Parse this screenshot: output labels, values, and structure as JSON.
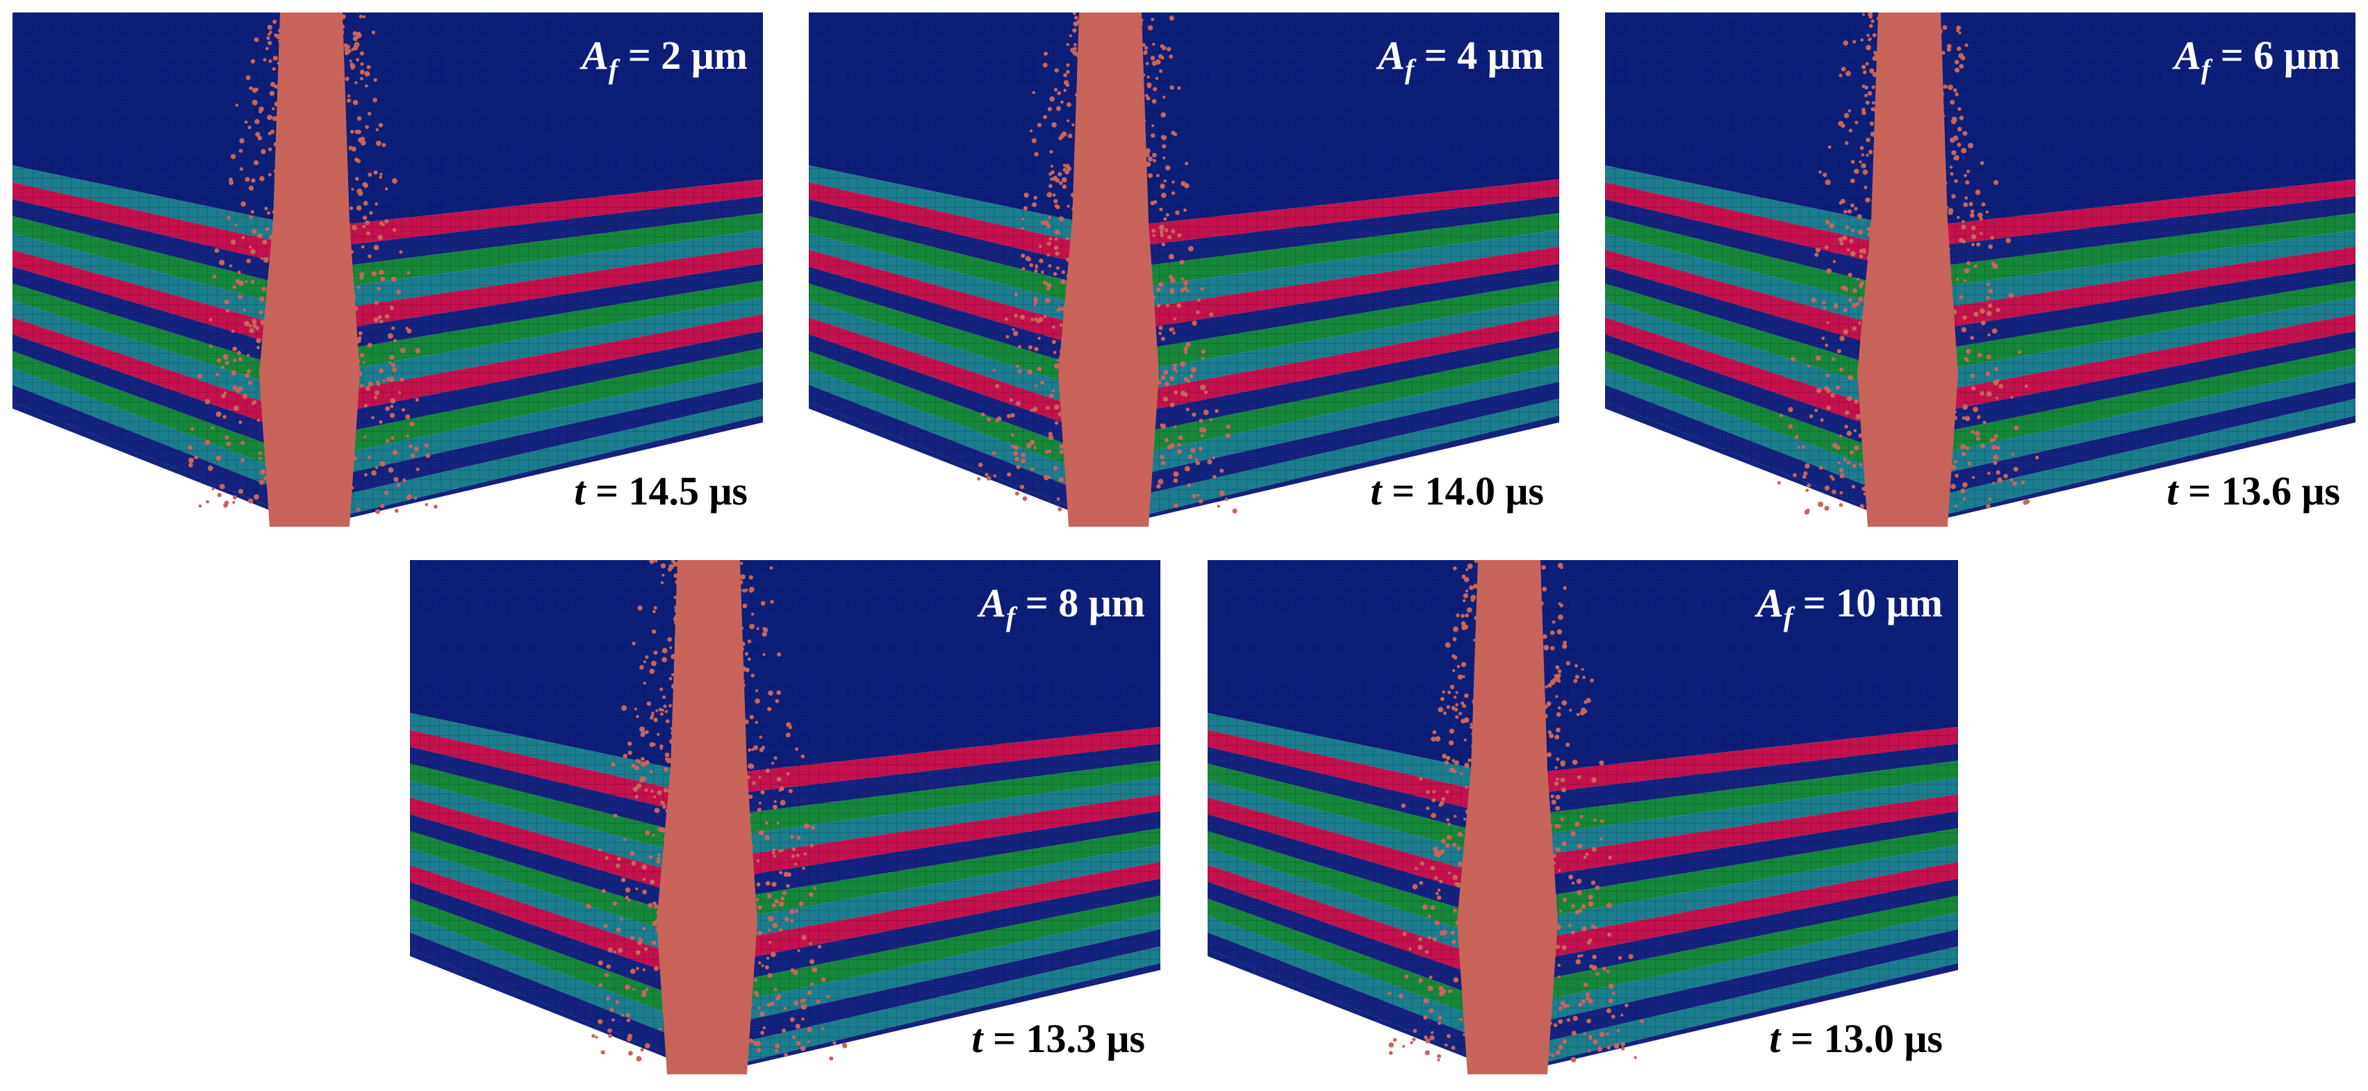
{
  "colors": {
    "top_plate": "#0d1f7a",
    "layer_blue": "#14237f",
    "layer_teal": "#1b7d8e",
    "layer_green": "#16873a",
    "layer_red": "#c4124e",
    "projectile": "#c8645a",
    "background": "#ffffff"
  },
  "panels": [
    {
      "af_symbol": "A",
      "af_sub": "f",
      "af_value": "= 2 μm",
      "t_symbol": "t",
      "t_value": "= 14.5 μs"
    },
    {
      "af_symbol": "A",
      "af_sub": "f",
      "af_value": "= 4 μm",
      "t_symbol": "t",
      "t_value": "= 14.0 μs"
    },
    {
      "af_symbol": "A",
      "af_sub": "f",
      "af_value": "= 6 μm",
      "t_symbol": "t",
      "t_value": "= 13.6 μs"
    },
    {
      "af_symbol": "A",
      "af_sub": "f",
      "af_value": "= 8 μm",
      "t_symbol": "t",
      "t_value": "= 13.3 μs"
    },
    {
      "af_symbol": "A",
      "af_sub": "f",
      "af_value": "= 10 μm",
      "t_symbol": "t",
      "t_value": "= 13.0 μs"
    }
  ]
}
